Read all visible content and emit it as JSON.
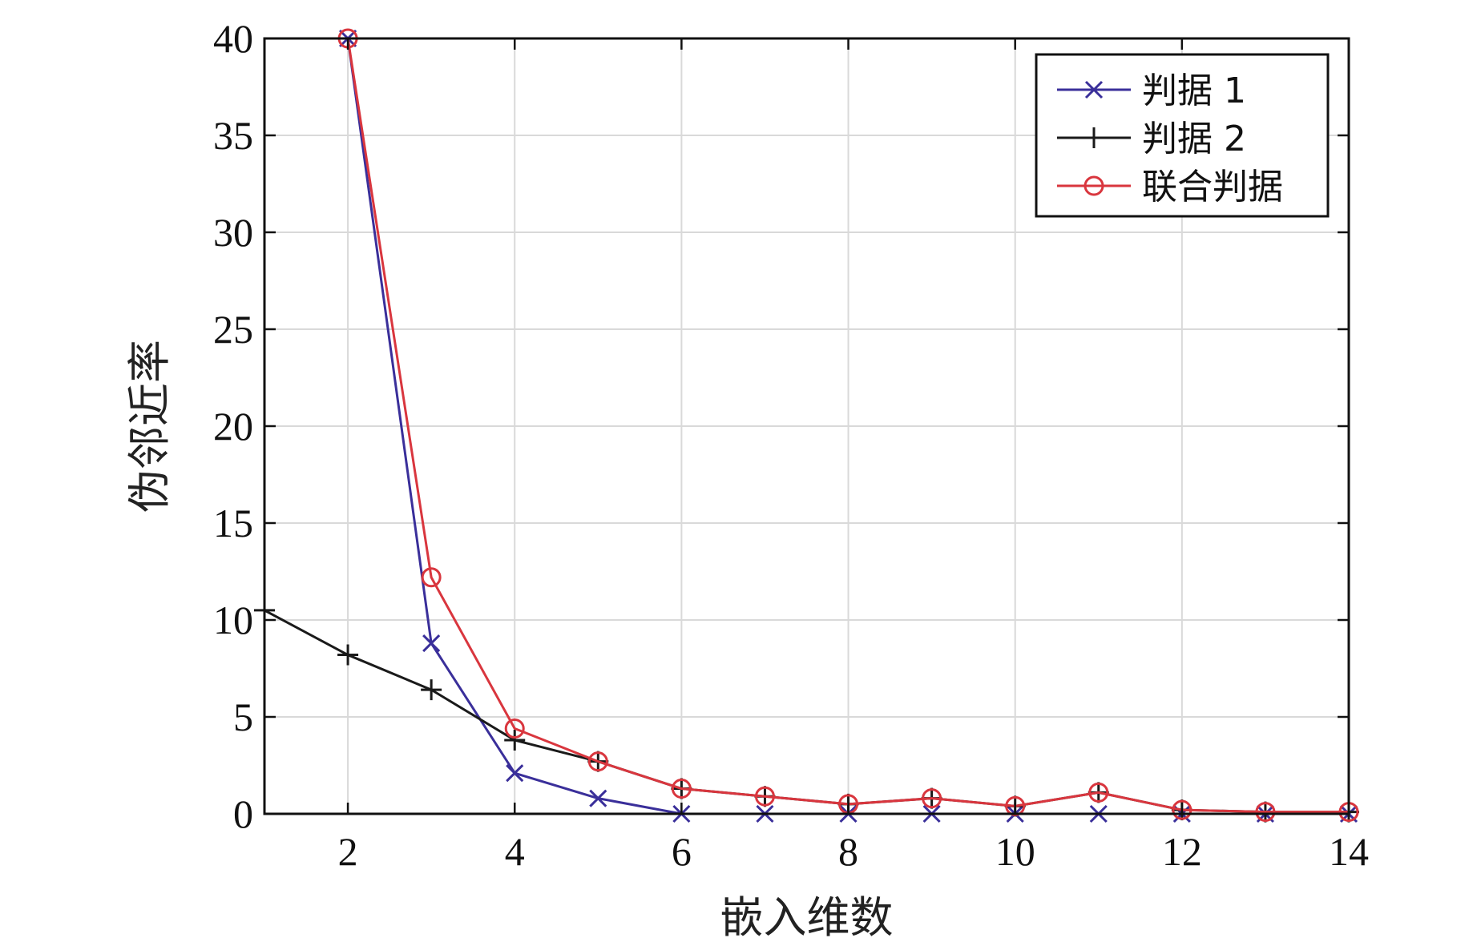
{
  "chart_data": {
    "type": "line",
    "xlabel": "嵌入维数",
    "ylabel": "伪邻近率",
    "xlim": [
      1,
      14
    ],
    "ylim": [
      0,
      40
    ],
    "xticks": [
      2,
      4,
      6,
      8,
      10,
      12,
      14
    ],
    "yticks": [
      0,
      5,
      10,
      15,
      20,
      25,
      30,
      35,
      40
    ],
    "grid": true,
    "legend_position": "top-right",
    "series": [
      {
        "name": "判据 1",
        "color": "#3a2f9a",
        "marker": "x",
        "x": [
          2,
          3,
          4,
          5,
          6,
          7,
          8,
          9,
          10,
          11,
          12,
          13,
          14
        ],
        "y": [
          40,
          8.8,
          2.1,
          0.8,
          0,
          0,
          0,
          0,
          0,
          0,
          0,
          0,
          0
        ]
      },
      {
        "name": "判据 2",
        "color": "#1a1a1a",
        "marker": "+",
        "x": [
          1,
          2,
          3,
          4,
          5,
          6,
          7,
          8,
          9,
          10,
          11,
          12,
          13,
          14
        ],
        "y": [
          10.5,
          8.2,
          6.4,
          3.8,
          2.7,
          1.3,
          0.9,
          0.5,
          0.8,
          0.4,
          1.1,
          0.2,
          0.1,
          0.1
        ]
      },
      {
        "name": "联合判据",
        "color": "#d9363e",
        "marker": "o",
        "x": [
          2,
          3,
          4,
          5,
          6,
          7,
          8,
          9,
          10,
          11,
          12,
          13,
          14
        ],
        "y": [
          40,
          12.2,
          4.4,
          2.7,
          1.3,
          0.9,
          0.5,
          0.8,
          0.4,
          1.1,
          0.2,
          0.1,
          0.1
        ]
      }
    ]
  }
}
